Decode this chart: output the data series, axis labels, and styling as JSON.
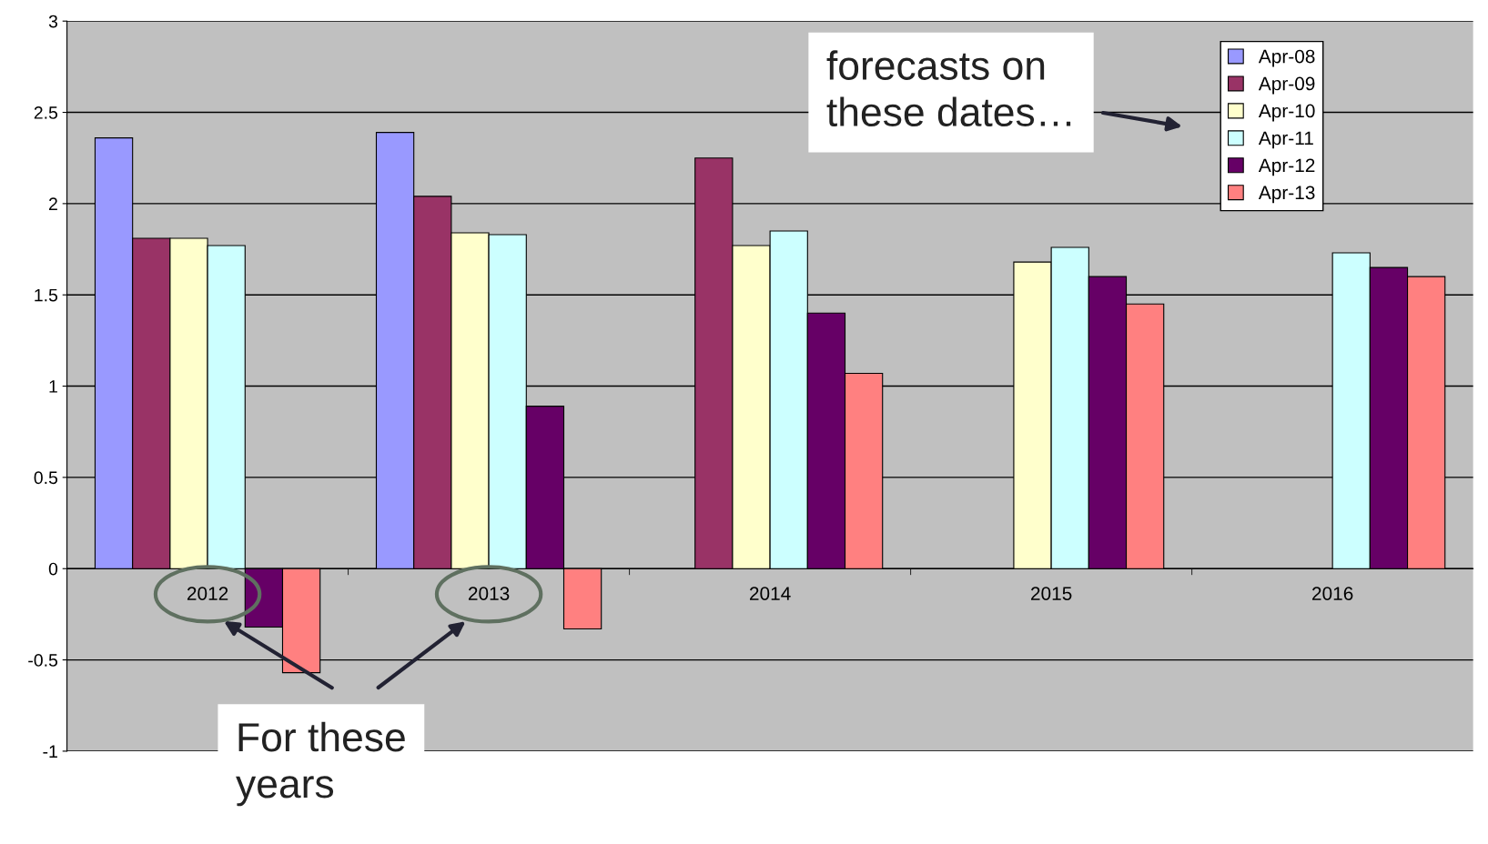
{
  "chart_data": {
    "type": "bar",
    "categories": [
      "2012",
      "2013",
      "2014",
      "2015",
      "2016"
    ],
    "series": [
      {
        "name": "Apr-08",
        "color": "#9999ff",
        "values": [
          2.36,
          2.39,
          null,
          null,
          null
        ]
      },
      {
        "name": "Apr-09",
        "color": "#993366",
        "values": [
          1.81,
          2.04,
          2.25,
          null,
          null
        ]
      },
      {
        "name": "Apr-10",
        "color": "#ffffcc",
        "values": [
          1.81,
          1.84,
          1.77,
          1.68,
          null
        ]
      },
      {
        "name": "Apr-11",
        "color": "#ccffff",
        "values": [
          1.77,
          1.83,
          1.85,
          1.76,
          1.73
        ]
      },
      {
        "name": "Apr-12",
        "color": "#660066",
        "values": [
          -0.32,
          0.89,
          1.4,
          1.6,
          1.65
        ]
      },
      {
        "name": "Apr-13",
        "color": "#ff8080",
        "values": [
          -0.57,
          -0.33,
          1.07,
          1.45,
          1.6
        ]
      }
    ],
    "ylim": [
      -1,
      3
    ],
    "yticks": [
      -1,
      -0.5,
      0,
      0.5,
      1,
      1.5,
      2,
      2.5,
      3
    ],
    "grid": "y",
    "legend": "top right",
    "annotations": [
      "forecasts on\nthese dates…",
      "For these\nyears"
    ]
  }
}
